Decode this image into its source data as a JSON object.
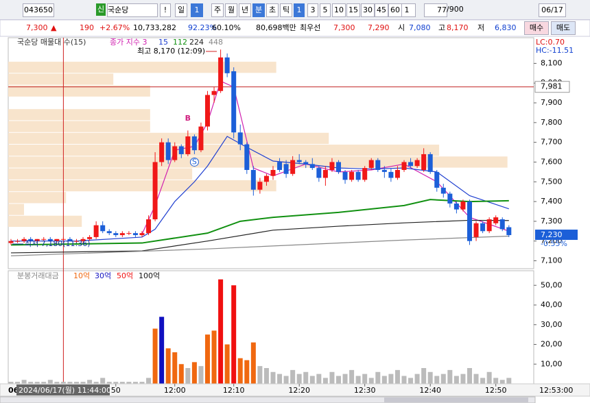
{
  "toolbar": {
    "code": "043650",
    "badge": "신",
    "name": "국순당",
    "alert": "!",
    "periods": [
      "일",
      "1",
      "주",
      "월",
      "년",
      "분",
      "초",
      "틱"
    ],
    "intervals": [
      "1",
      "3",
      "5",
      "10",
      "15",
      "30",
      "45",
      "60"
    ],
    "count": "1",
    "shown": "77",
    "total": "/900",
    "date": "06/17"
  },
  "quote": {
    "price": "7,300",
    "arrow": "▲",
    "change": "190",
    "rate": "+2.67%",
    "volume": "10,733,282",
    "ratio1": "92.23%",
    "ratio2": "60.10%",
    "amount": "80,698백만",
    "best": "최우선",
    "ask": "7,300",
    "bid": "7,290",
    "open_label": "시",
    "open": "7,080",
    "high_label": "고",
    "high": "8,170",
    "low_label": "저",
    "low": "6,830",
    "buy": "매수",
    "sell": "매도"
  },
  "chart_data": [
    {
      "type": "candlestick",
      "title": "국순당 매물대 수(15)",
      "up_color": "#f01818",
      "down_color": "#1c5fd8",
      "ylim": [
        7060,
        8230
      ],
      "yticks": [
        {
          "value": 7100,
          "label": "7,100"
        },
        {
          "value": 7200,
          "label": "7,200"
        },
        {
          "value": 7300,
          "label": "7,300"
        },
        {
          "value": 7400,
          "label": "7,400"
        },
        {
          "value": 7500,
          "label": "7,500"
        },
        {
          "value": 7600,
          "label": "7,600"
        },
        {
          "value": 7700,
          "label": "7,700"
        },
        {
          "value": 7800,
          "label": "7,800"
        },
        {
          "value": 7900,
          "label": "7,900"
        },
        {
          "value": 8000,
          "label": "8,000"
        },
        {
          "value": 8100,
          "label": "8,100"
        }
      ],
      "ohlc": [
        [
          7190,
          7210,
          7180,
          7200
        ],
        [
          7200,
          7210,
          7190,
          7200
        ],
        [
          7200,
          7220,
          7190,
          7210
        ],
        [
          7210,
          7220,
          7200,
          7200
        ],
        [
          7200,
          7210,
          7190,
          7210
        ],
        [
          7210,
          7220,
          7200,
          7210
        ],
        [
          7210,
          7220,
          7200,
          7200
        ],
        [
          7200,
          7210,
          7190,
          7210
        ],
        [
          7210,
          7220,
          7200,
          7210
        ],
        [
          7210,
          7220,
          7200,
          7200
        ],
        [
          7200,
          7210,
          7190,
          7200
        ],
        [
          7200,
          7220,
          7190,
          7210
        ],
        [
          7210,
          7230,
          7200,
          7220
        ],
        [
          7220,
          7300,
          7210,
          7280
        ],
        [
          7280,
          7300,
          7240,
          7250
        ],
        [
          7250,
          7260,
          7230,
          7240
        ],
        [
          7240,
          7250,
          7220,
          7230
        ],
        [
          7230,
          7250,
          7220,
          7240
        ],
        [
          7240,
          7250,
          7230,
          7240
        ],
        [
          7240,
          7250,
          7220,
          7230
        ],
        [
          7230,
          7250,
          7220,
          7240
        ],
        [
          7240,
          7330,
          7230,
          7310
        ],
        [
          7310,
          7650,
          7300,
          7600
        ],
        [
          7600,
          7720,
          7580,
          7700
        ],
        [
          7700,
          7720,
          7590,
          7610
        ],
        [
          7610,
          7700,
          7600,
          7680
        ],
        [
          7680,
          7690,
          7620,
          7640
        ],
        [
          7640,
          7760,
          7630,
          7730
        ],
        [
          7730,
          7740,
          7640,
          7660
        ],
        [
          7660,
          7800,
          7650,
          7780
        ],
        [
          7780,
          7960,
          7760,
          7940
        ],
        [
          7940,
          7980,
          7900,
          7960
        ],
        [
          7960,
          8170,
          7950,
          8130
        ],
        [
          8130,
          8150,
          8030,
          8050
        ],
        [
          8060,
          8080,
          7720,
          7750
        ],
        [
          7750,
          7790,
          7660,
          7690
        ],
        [
          7690,
          7700,
          7540,
          7560
        ],
        [
          7560,
          7580,
          7430,
          7460
        ],
        [
          7460,
          7520,
          7440,
          7500
        ],
        [
          7500,
          7540,
          7480,
          7530
        ],
        [
          7530,
          7580,
          7510,
          7560
        ],
        [
          7600,
          7620,
          7550,
          7560
        ],
        [
          7590,
          7610,
          7520,
          7540
        ],
        [
          7540,
          7630,
          7530,
          7610
        ],
        [
          7610,
          7640,
          7590,
          7600
        ],
        [
          7600,
          7610,
          7570,
          7590
        ],
        [
          7590,
          7620,
          7560,
          7570
        ],
        [
          7570,
          7580,
          7500,
          7520
        ],
        [
          7520,
          7580,
          7480,
          7560
        ],
        [
          7560,
          7620,
          7550,
          7600
        ],
        [
          7600,
          7610,
          7540,
          7550
        ],
        [
          7550,
          7560,
          7490,
          7510
        ],
        [
          7510,
          7560,
          7500,
          7550
        ],
        [
          7550,
          7560,
          7500,
          7510
        ],
        [
          7510,
          7580,
          7500,
          7570
        ],
        [
          7570,
          7620,
          7560,
          7610
        ],
        [
          7610,
          7620,
          7550,
          7560
        ],
        [
          7560,
          7580,
          7520,
          7550
        ],
        [
          7550,
          7570,
          7500,
          7520
        ],
        [
          7520,
          7580,
          7510,
          7560
        ],
        [
          7560,
          7610,
          7550,
          7600
        ],
        [
          7600,
          7620,
          7570,
          7580
        ],
        [
          7580,
          7620,
          7570,
          7610
        ],
        [
          7560,
          7670,
          7550,
          7640
        ],
        [
          7640,
          7650,
          7540,
          7550
        ],
        [
          7550,
          7560,
          7450,
          7470
        ],
        [
          7470,
          7490,
          7420,
          7440
        ],
        [
          7440,
          7450,
          7370,
          7390
        ],
        [
          7390,
          7400,
          7340,
          7360
        ],
        [
          7360,
          7410,
          7350,
          7400
        ],
        [
          7400,
          7410,
          7180,
          7200
        ],
        [
          7220,
          7300,
          7200,
          7290
        ],
        [
          7290,
          7300,
          7240,
          7250
        ],
        [
          7250,
          7320,
          7240,
          7310
        ],
        [
          7290,
          7330,
          7280,
          7320
        ],
        [
          7310,
          7320,
          7250,
          7260
        ],
        [
          7270,
          7280,
          7220,
          7230
        ]
      ],
      "series": [
        {
          "name": "종가 지수 3",
          "color": "#d020b0",
          "x": [
            20,
            22,
            25,
            28,
            30,
            32,
            34,
            37,
            40,
            45,
            50,
            55,
            60,
            65,
            70,
            76
          ],
          "values": [
            7235,
            7380,
            7660,
            7680,
            7800,
            8010,
            7980,
            7570,
            7530,
            7590,
            7550,
            7560,
            7590,
            7500,
            7320,
            7250
          ]
        },
        {
          "name": "15",
          "color": "#2040d0",
          "x": [
            0,
            10,
            20,
            22,
            25,
            28,
            30,
            33,
            36,
            40,
            45,
            50,
            55,
            60,
            65,
            70,
            76
          ],
          "values": [
            7200,
            7200,
            7220,
            7260,
            7400,
            7500,
            7580,
            7730,
            7675,
            7605,
            7590,
            7570,
            7565,
            7570,
            7550,
            7430,
            7363
          ]
        },
        {
          "name": "112",
          "color": "#109010",
          "x": [
            0,
            20,
            30,
            35,
            40,
            50,
            60,
            64,
            70,
            76
          ],
          "values": [
            7180,
            7190,
            7240,
            7300,
            7320,
            7345,
            7380,
            7410,
            7400,
            7404
          ]
        },
        {
          "name": "224",
          "color": "#222222",
          "x": [
            0,
            20,
            30,
            40,
            50,
            60,
            70,
            76
          ],
          "values": [
            7140,
            7150,
            7200,
            7255,
            7275,
            7292,
            7305,
            7304
          ]
        },
        {
          "name": "448",
          "color": "#888888",
          "x": [
            0,
            30,
            60,
            76
          ],
          "values": [
            7125,
            7160,
            7205,
            7225
          ]
        }
      ],
      "volume_profile": {
        "name": "매물대",
        "color": "#f8e4cc",
        "bins": [
          7270,
          7330,
          7390,
          7450,
          7510,
          7570,
          7630,
          7690,
          7750,
          7810,
          7870,
          7930,
          7990,
          8050,
          8110,
          8170
        ],
        "values": [
          14,
          3,
          11,
          51,
          35,
          95,
          82,
          61,
          27,
          27,
          0,
          27,
          20,
          51,
          0
        ]
      },
      "reference_line": {
        "value": 7981,
        "label": "7,981",
        "color": "#c02020"
      },
      "last_label": {
        "value": 7230,
        "label": "7,230",
        "change": "-0.55%"
      },
      "high_note": "최고 8,170 (12:09)",
      "low_note": "최저 7,180(11:36)",
      "corner": [
        "LC:0.70",
        "HC:-11.51"
      ],
      "signals": [
        "B",
        "S"
      ]
    },
    {
      "type": "bar",
      "title": "분봉거래대금",
      "legend": [
        {
          "name": "10억",
          "color": "#f06810"
        },
        {
          "name": "30억",
          "color": "#1010c0"
        },
        {
          "name": "50억",
          "color": "#f01010"
        },
        {
          "name": "100억",
          "color": "#111111"
        }
      ],
      "ylim": [
        0,
        56
      ],
      "yticks": [
        {
          "value": 10,
          "label": "10,00"
        },
        {
          "value": 20,
          "label": "20,00"
        },
        {
          "value": 30,
          "label": "30,00"
        },
        {
          "value": 40,
          "label": "40,00"
        },
        {
          "value": 50,
          "label": "50,00"
        }
      ],
      "categories": [
        null,
        null,
        null,
        null,
        null,
        null,
        null,
        null,
        null,
        null,
        null,
        null,
        null,
        null,
        null,
        null,
        "50",
        null,
        null,
        null,
        null,
        null,
        null,
        null,
        null,
        "12:00",
        null,
        null,
        null,
        null,
        null,
        null,
        null,
        null,
        "12:10",
        null,
        null,
        null,
        null,
        null,
        null,
        null,
        null,
        null,
        "12:20",
        null,
        null,
        null,
        null,
        null,
        null,
        null,
        null,
        null,
        "12:30",
        null,
        null,
        null,
        null,
        null,
        null,
        null,
        null,
        null,
        "12:40",
        null,
        null,
        null,
        null,
        null,
        null,
        null,
        null,
        null,
        "12:50",
        null,
        null
      ],
      "values": [
        1,
        1,
        2,
        1,
        1,
        1,
        2,
        1,
        1,
        1,
        1,
        1,
        2,
        1,
        3,
        1,
        1,
        1,
        1,
        1,
        1,
        3,
        28,
        34,
        18,
        16,
        10,
        8,
        11,
        9,
        25,
        27,
        53,
        20,
        50,
        13,
        12,
        21,
        9,
        8,
        6,
        5,
        4,
        7,
        5,
        6,
        4,
        5,
        3,
        6,
        4,
        5,
        7,
        4,
        5,
        3,
        6,
        4,
        5,
        7,
        4,
        3,
        5,
        8,
        6,
        4,
        5,
        7,
        4,
        5,
        8,
        5,
        3,
        6,
        3,
        2,
        3
      ],
      "bar_colors": [
        "#bbb",
        "#bbb",
        "#bbb",
        "#bbb",
        "#bbb",
        "#bbb",
        "#bbb",
        "#bbb",
        "#bbb",
        "#bbb",
        "#bbb",
        "#bbb",
        "#bbb",
        "#bbb",
        "#bbb",
        "#bbb",
        "#bbb",
        "#bbb",
        "#bbb",
        "#bbb",
        "#bbb",
        "#bbb",
        "#f06810",
        "#1010c0",
        "#f06810",
        "#f06810",
        "#f06810",
        "#bbb",
        "#f06810",
        "#bbb",
        "#f06810",
        "#f06810",
        "#f01010",
        "#f06810",
        "#f01010",
        "#f06810",
        "#f06810",
        "#f06810",
        "#bbb",
        "#bbb",
        "#bbb",
        "#bbb",
        "#bbb",
        "#bbb",
        "#bbb",
        "#bbb",
        "#bbb",
        "#bbb",
        "#bbb",
        "#bbb",
        "#bbb",
        "#bbb",
        "#bbb",
        "#bbb",
        "#bbb",
        "#bbb",
        "#bbb",
        "#bbb",
        "#bbb",
        "#bbb",
        "#bbb",
        "#bbb",
        "#bbb",
        "#bbb",
        "#bbb",
        "#bbb",
        "#bbb",
        "#bbb",
        "#bbb",
        "#bbb",
        "#bbb",
        "#bbb",
        "#bbb",
        "#bbb",
        "#bbb",
        "#bbb",
        "#bbb"
      ],
      "crosshair": {
        "index": 8,
        "date_prefix": "06",
        "label": "2024/06/17(월) 11:44:00"
      },
      "last_time": "12:53:00"
    }
  ]
}
